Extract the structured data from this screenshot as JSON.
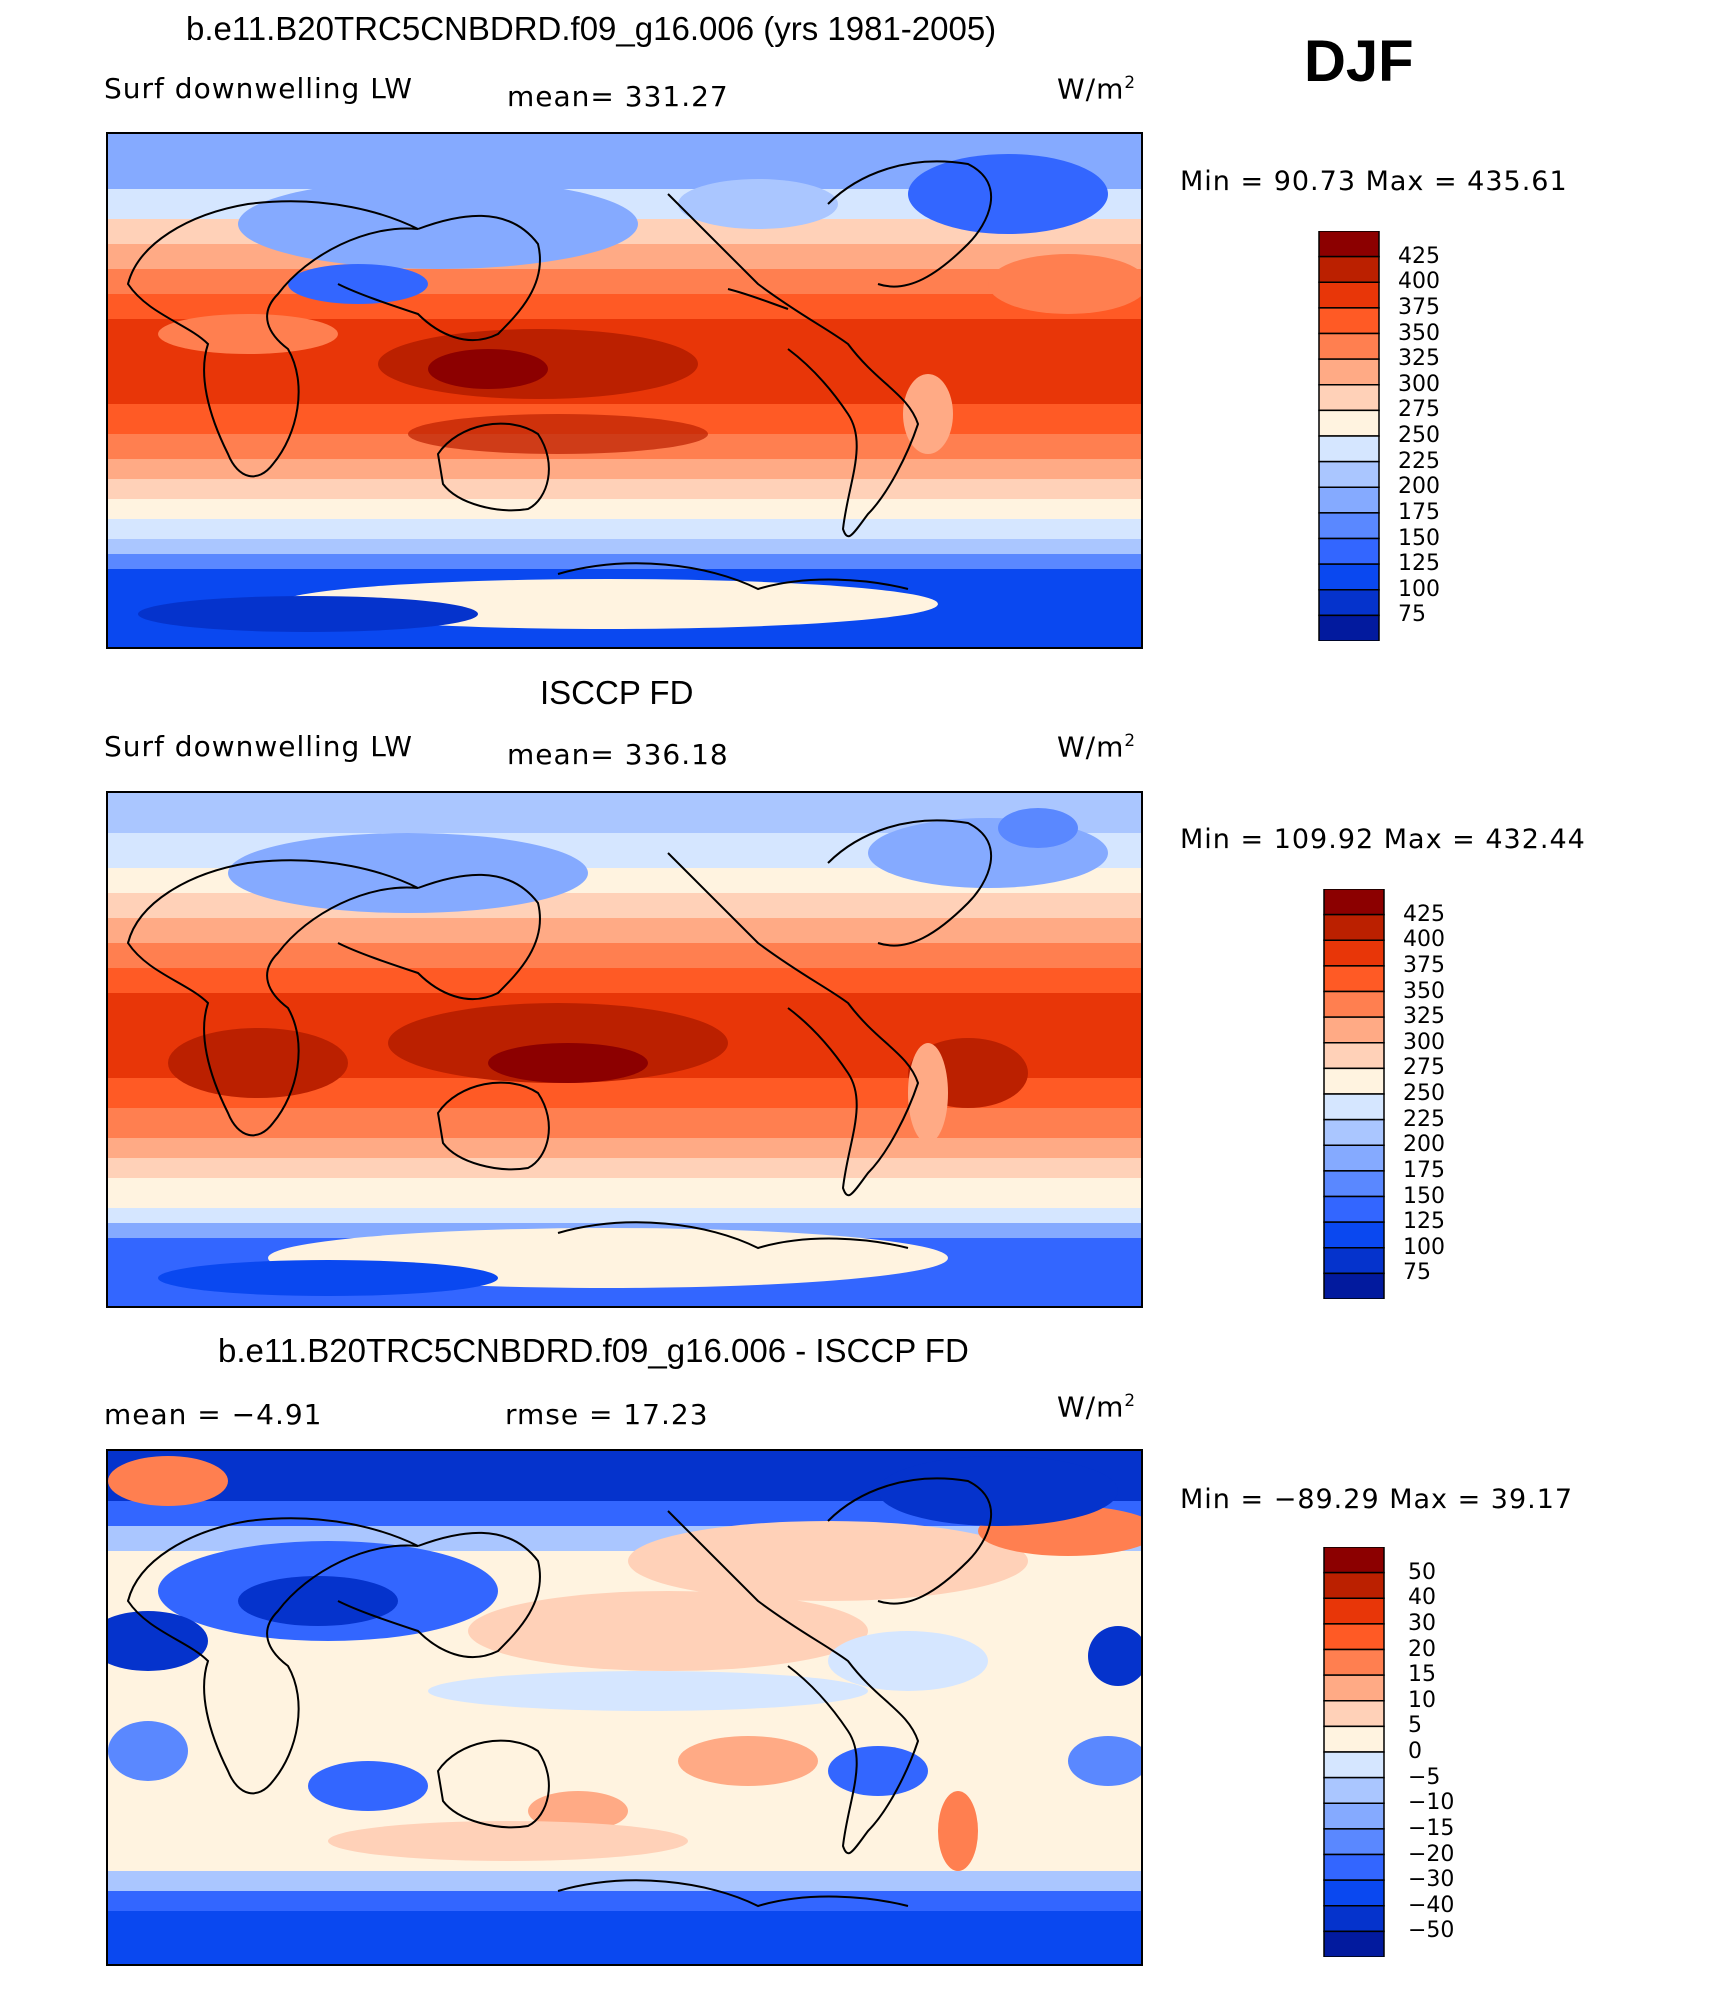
{
  "season": "DJF",
  "palettes": {
    "warm": [
      "#000080",
      "#021a9e",
      "#0533cc",
      "#0a48f0",
      "#3366ff",
      "#5a88ff",
      "#85aaff",
      "#aac6ff",
      "#d5e6ff",
      "#fff3e0",
      "#ffd1b8",
      "#ffaa85",
      "#ff7f50",
      "#ff5a25",
      "#e83608",
      "#bb2000",
      "#8c0000"
    ],
    "diff": [
      "#000080",
      "#021a9e",
      "#0533cc",
      "#0a48f0",
      "#3366ff",
      "#5a88ff",
      "#85aaff",
      "#aac6ff",
      "#d5e6ff",
      "#fff3e0",
      "#ffd1b8",
      "#ffaa85",
      "#ff7f50",
      "#ff5a25",
      "#e83608",
      "#bb2000",
      "#8c0000"
    ]
  },
  "panels": [
    {
      "title": "b.e11.B20TRC5CNBDRD.f09_g16.006 (yrs 1981-2005)",
      "left_label": "Surf downwelling LW",
      "center_label": "mean= 331.27",
      "units": "W/m",
      "units_sup": "2",
      "minmax": "Min =   90.73  Max  =  435.61",
      "levels": [
        "425",
        "400",
        "375",
        "350",
        "325",
        "300",
        "275",
        "250",
        "225",
        "200",
        "175",
        "150",
        "125",
        "100",
        "75"
      ]
    },
    {
      "title": "ISCCP FD",
      "left_label": "Surf downwelling LW",
      "center_label": "mean= 336.18",
      "units": "W/m",
      "units_sup": "2",
      "minmax": "Min  =  109.92  Max  =  432.44",
      "levels": [
        "425",
        "400",
        "375",
        "350",
        "325",
        "300",
        "275",
        "250",
        "225",
        "200",
        "175",
        "150",
        "125",
        "100",
        "75"
      ]
    },
    {
      "title": "b.e11.B20TRC5CNBDRD.f09_g16.006 - ISCCP FD",
      "left_label": "mean =    −4.91",
      "center_label": "rmse =    17.23",
      "units": "W/m",
      "units_sup": "2",
      "minmax": "Min  =  −89.29  Max  =    39.17",
      "levels": [
        "50",
        "40",
        "30",
        "20",
        "15",
        "10",
        "5",
        "0",
        "−5",
        "−10",
        "−15",
        "−20",
        "−30",
        "−40",
        "−50"
      ]
    }
  ]
}
